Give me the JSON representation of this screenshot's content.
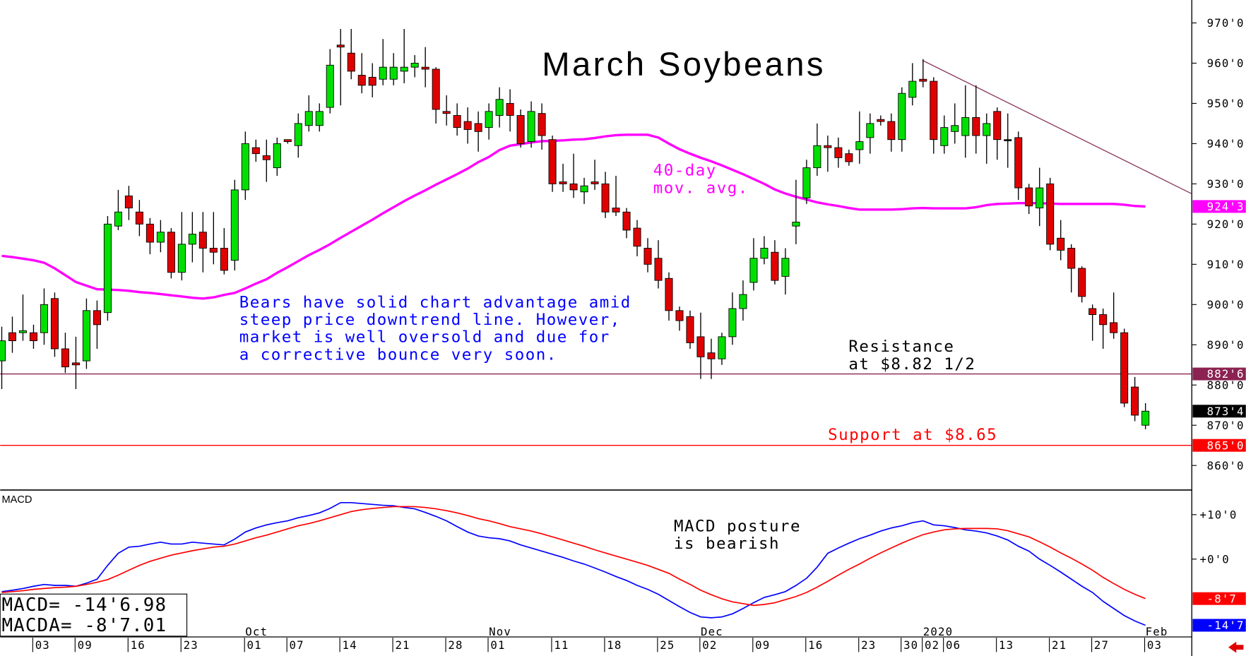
{
  "chart_data": {
    "type": "candlestick",
    "title": "March Soybeans",
    "categories": [
      null,
      null,
      null,
      "03",
      null,
      null,
      null,
      "09",
      null,
      null,
      null,
      null,
      "16",
      null,
      null,
      null,
      null,
      "23",
      null,
      null,
      null,
      null,
      null,
      "01",
      null,
      null,
      null,
      "07",
      null,
      null,
      null,
      null,
      "14",
      null,
      null,
      null,
      null,
      "21",
      null,
      null,
      null,
      null,
      "28",
      null,
      null,
      null,
      "01",
      null,
      null,
      null,
      null,
      null,
      "11",
      null,
      null,
      null,
      null,
      "18",
      null,
      null,
      null,
      null,
      "25",
      null,
      null,
      null,
      "02",
      null,
      null,
      null,
      null,
      "09",
      null,
      null,
      null,
      null,
      "16",
      null,
      null,
      null,
      null,
      "23",
      null,
      null,
      null,
      "30",
      null,
      "02",
      null,
      "06",
      null,
      null,
      null,
      null,
      "13",
      null,
      null,
      null,
      null,
      "21",
      null,
      null,
      null,
      "27",
      null,
      null,
      null,
      null,
      "03"
    ],
    "month_labels": [
      {
        "label": "Oct",
        "index": 23
      },
      {
        "label": "Nov",
        "index": 46
      },
      {
        "label": "Dec",
        "index": 66
      },
      {
        "label": "2020",
        "index": 87
      },
      {
        "label": "Feb",
        "index": 108
      }
    ],
    "up_color": "#00e000",
    "down_color": "#e00000",
    "open": [
      886,
      893,
      893,
      893,
      893,
      901.5,
      889,
      885.5,
      886,
      898.5,
      898,
      919.5,
      927,
      923,
      920,
      915.5,
      918,
      908,
      915,
      918,
      914,
      914,
      911,
      928.5,
      939,
      937,
      934,
      941,
      939.5,
      944.5,
      944.5,
      949,
      964.5,
      962.5,
      957,
      956.5,
      956,
      956,
      958,
      959,
      959,
      958.5,
      948,
      947,
      945.5,
      945,
      944,
      947,
      950,
      947,
      940.5,
      947.5,
      941,
      930.5,
      930,
      928,
      930.5,
      930,
      924,
      923,
      919,
      914,
      911.5,
      906.5,
      898.5,
      897,
      892,
      888,
      886.5,
      892,
      899,
      905.5,
      911.5,
      913,
      907,
      919.5,
      926.5,
      934,
      939.5,
      939,
      937.5,
      938.5,
      941.5,
      946,
      945.5,
      941,
      951.5,
      956,
      955.5,
      939.5,
      943,
      942,
      946.5,
      942,
      948,
      941,
      941.5,
      929,
      924,
      930,
      916.5,
      914,
      909,
      899,
      897.5,
      895.5,
      893,
      879.5,
      870
    ],
    "high": [
      894.5,
      897,
      902.5,
      895,
      904,
      903,
      893,
      892,
      901.5,
      901,
      922,
      928.5,
      929.5,
      926,
      921.5,
      921,
      919,
      923,
      923,
      923,
      923,
      919,
      931,
      943,
      941,
      941,
      941.5,
      941,
      947.5,
      952,
      950,
      963.5,
      968.5,
      968.5,
      962.5,
      960,
      966,
      962.5,
      968.5,
      962,
      964,
      959,
      952,
      950,
      949,
      948,
      950,
      954,
      953.5,
      948.5,
      950.5,
      950,
      942,
      935,
      937.5,
      931.5,
      936,
      933,
      932,
      924,
      921,
      916.5,
      916,
      908,
      899.5,
      898.5,
      898,
      891.5,
      893,
      903,
      906,
      916.5,
      917,
      916,
      914,
      931,
      936,
      945,
      942,
      941.5,
      938.5,
      948,
      947.5,
      947,
      947.5,
      954,
      960,
      961,
      956.5,
      947,
      950,
      954.5,
      954.5,
      947.5,
      949,
      947.5,
      943,
      930,
      934,
      931.5,
      921,
      915,
      909.5,
      900,
      899,
      903,
      894,
      882,
      875.5
    ],
    "low": [
      879,
      888,
      891,
      889,
      890,
      887,
      883,
      879,
      884,
      889,
      896,
      918.5,
      921,
      917,
      912.5,
      913,
      906.5,
      906,
      910.5,
      908,
      910,
      907.5,
      908.5,
      926,
      935.5,
      930.5,
      932,
      940,
      936.5,
      943,
      943,
      947.5,
      949.5,
      956,
      952.5,
      951.5,
      954.5,
      954.5,
      955,
      956.5,
      954,
      945,
      944.5,
      942,
      940,
      938,
      941,
      944,
      943,
      939,
      939,
      938.5,
      928,
      928,
      926.5,
      925,
      928.5,
      921.5,
      922,
      916.5,
      912,
      908,
      904,
      896,
      893.5,
      889,
      881.5,
      881.5,
      885,
      890,
      896,
      903.5,
      910,
      905,
      902.5,
      915,
      925,
      932,
      933,
      934,
      934.5,
      935,
      937.5,
      944.5,
      938,
      938,
      949.5,
      954,
      937.5,
      937.5,
      940,
      936.5,
      937.5,
      935,
      936,
      934,
      926,
      922.5,
      919.5,
      913.5,
      911,
      903,
      900.5,
      891,
      889,
      891.5,
      874.5,
      871,
      869
    ],
    "close": [
      891,
      891,
      893.5,
      891,
      900,
      889,
      884.5,
      885,
      898.5,
      895,
      920,
      923,
      924,
      920,
      915.5,
      918,
      908,
      915,
      917.5,
      914,
      913,
      908.5,
      928.5,
      940,
      937.5,
      936,
      940,
      940.5,
      945,
      948,
      948,
      959.5,
      964,
      958,
      954.5,
      954.5,
      959,
      959,
      959,
      960,
      958.5,
      948.5,
      947.5,
      944,
      943.5,
      943,
      948,
      951,
      947,
      940,
      948,
      942,
      930,
      930,
      928.5,
      929.5,
      930,
      923,
      923,
      918.5,
      914.5,
      910,
      906,
      898.5,
      896,
      890.5,
      887,
      886.5,
      892,
      899,
      902.5,
      911.5,
      914,
      906,
      911.5,
      920.5,
      934,
      939.5,
      939,
      936.5,
      935.5,
      940.5,
      945,
      945.5,
      941,
      952.5,
      955.5,
      955.5,
      941,
      944,
      944.5,
      946.5,
      942,
      945,
      941,
      941,
      929,
      924.5,
      929,
      915,
      913.5,
      909,
      902,
      897.5,
      895,
      893,
      875.5,
      872.5,
      873.5
    ],
    "moving_average": {
      "color": "#ff00ff",
      "values": [
        912.1,
        911.8,
        911.4,
        911.0,
        910.4,
        909.0,
        907.3,
        905.6,
        904.7,
        903.8,
        903.7,
        903.6,
        903.4,
        903.1,
        902.9,
        902.6,
        902.3,
        902.0,
        901.7,
        901.5,
        901.8,
        902.4,
        902.9,
        904.0,
        905.2,
        906.3,
        907.9,
        909.3,
        910.8,
        912.3,
        913.6,
        915.0,
        916.6,
        918.1,
        919.6,
        921.1,
        922.7,
        924.2,
        925.7,
        927.1,
        928.4,
        929.8,
        931.1,
        932.4,
        933.8,
        935.4,
        936.7,
        938.4,
        939.5,
        939.9,
        940.3,
        940.6,
        940.7,
        940.8,
        941.0,
        941.1,
        941.4,
        941.8,
        942.1,
        942.2,
        942.2,
        942.2,
        941.5,
        940.0,
        938.6,
        937.5,
        936.5,
        935.6,
        934.6,
        933.5,
        932.4,
        931.2,
        930.0,
        928.6,
        927.6,
        926.8,
        926.1,
        925.4,
        924.9,
        924.5,
        924.0,
        923.6,
        923.6,
        923.6,
        923.6,
        923.7,
        923.9,
        924.0,
        923.9,
        923.9,
        923.9,
        923.9,
        924.2,
        924.7,
        925.0,
        925.1,
        925.2,
        925.2,
        925.2,
        925.1,
        925.0,
        925.0,
        925.0,
        925.0,
        925.0,
        925.0,
        924.8,
        924.5,
        924.375
      ]
    },
    "ylim": [
      853.9,
      975.7
    ],
    "yticks": [
      {
        "value": 970,
        "label": "970'0"
      },
      {
        "value": 960,
        "label": "960'0"
      },
      {
        "value": 950,
        "label": "950'0"
      },
      {
        "value": 940,
        "label": "940'0"
      },
      {
        "value": 930,
        "label": "930'0"
      },
      {
        "value": 920,
        "label": "920'0"
      },
      {
        "value": 910,
        "label": "910'0"
      },
      {
        "value": 900,
        "label": "900'0"
      },
      {
        "value": 890,
        "label": "890'0"
      },
      {
        "value": 880,
        "label": "880'0"
      },
      {
        "value": 870,
        "label": "870'0"
      },
      {
        "value": 860,
        "label": "860'0"
      }
    ],
    "price_tags": [
      {
        "value": 924.375,
        "label": "924'3",
        "color": "#ff00ff",
        "line": false
      },
      {
        "value": 882.75,
        "label": "882'6",
        "color": "#8b2252",
        "line": true
      },
      {
        "value": 873.5,
        "label": "873'4",
        "color": "#000000",
        "line": false
      },
      {
        "value": 865,
        "label": "865'0",
        "color": "#ff0000",
        "line": true
      }
    ],
    "annotations": [
      {
        "lines": [
          "40-day",
          "mov. avg."
        ],
        "color": "#ff00ff"
      },
      {
        "lines": [
          "Bears have solid chart advantage amid",
          "steep price downtrend line. However,",
          "market is well oversold and due for",
          "a corrective bounce very soon."
        ],
        "color": "#0000ff"
      },
      {
        "lines": [
          "Resistance",
          "at $8.82 1/2"
        ],
        "color": "#000000"
      },
      {
        "lines": [
          "Support at $8.65"
        ],
        "color": "#ff0000"
      },
      {
        "lines": [
          "MACD posture",
          "is bearish"
        ],
        "color": "#000000"
      }
    ],
    "macd": {
      "title": "MACD",
      "ylim": [
        -17.14,
        15.18
      ],
      "yticks": [
        {
          "value": 10,
          "label": "+10'0"
        },
        {
          "value": 0,
          "label": "+0'0"
        }
      ],
      "series": [
        {
          "color": "#0000ff",
          "values": [
            -7.3,
            -7.0,
            -6.6,
            -6.1,
            -5.7,
            -5.9,
            -5.9,
            -6.1,
            -5.4,
            -4.5,
            -1.4,
            1.3,
            2.7,
            2.9,
            3.4,
            3.8,
            3.4,
            3.4,
            3.8,
            3.6,
            3.4,
            3.2,
            4.5,
            6.1,
            7.0,
            7.7,
            8.2,
            8.6,
            9.3,
            9.8,
            10.4,
            11.4,
            12.7,
            12.7,
            12.5,
            12.3,
            12.1,
            12.0,
            11.6,
            11.3,
            10.5,
            9.6,
            8.6,
            7.3,
            6.1,
            5.2,
            4.8,
            4.6,
            4.1,
            3.2,
            2.5,
            1.8,
            1.1,
            0.4,
            -0.4,
            -1.1,
            -2.0,
            -2.9,
            -3.9,
            -4.8,
            -5.9,
            -6.8,
            -7.9,
            -9.3,
            -10.7,
            -12.0,
            -13.0,
            -13.2,
            -13.0,
            -12.3,
            -11.1,
            -9.8,
            -8.6,
            -8.0,
            -7.3,
            -5.9,
            -4.3,
            -1.8,
            1.3,
            2.5,
            3.6,
            4.6,
            5.4,
            6.3,
            7.0,
            7.5,
            8.2,
            8.6,
            7.7,
            7.5,
            7.1,
            6.6,
            6.3,
            5.9,
            5.2,
            4.3,
            2.9,
            1.8,
            0,
            -1.4,
            -2.9,
            -4.5,
            -6.1,
            -7.5,
            -9.5,
            -11.1,
            -12.7,
            -13.9,
            -14.875
          ]
        },
        {
          "color": "#ff0000",
          "values": [
            -7.5,
            -7.3,
            -7.1,
            -6.8,
            -6.6,
            -6.4,
            -6.3,
            -6.1,
            -5.7,
            -5.2,
            -4.6,
            -3.6,
            -2.5,
            -1.4,
            -0.5,
            0.2,
            0.9,
            1.4,
            1.9,
            2.3,
            2.7,
            2.9,
            3.4,
            4.1,
            4.8,
            5.4,
            6.1,
            6.8,
            7.5,
            8.0,
            8.6,
            9.3,
            10.0,
            10.7,
            11.1,
            11.4,
            11.6,
            11.8,
            11.8,
            11.8,
            11.6,
            11.3,
            10.9,
            10.4,
            9.8,
            9.1,
            8.6,
            8.0,
            7.3,
            6.8,
            6.3,
            5.7,
            5.0,
            4.3,
            3.6,
            2.9,
            2.1,
            1.4,
            0.7,
            0,
            -0.7,
            -1.4,
            -2.3,
            -3.2,
            -4.5,
            -5.7,
            -7.0,
            -8.0,
            -8.9,
            -9.6,
            -10.0,
            -10.4,
            -10.2,
            -9.8,
            -9.1,
            -8.4,
            -7.5,
            -6.3,
            -5.0,
            -3.6,
            -2.3,
            -1.1,
            0.2,
            1.4,
            2.5,
            3.6,
            4.6,
            5.5,
            6.1,
            6.6,
            6.8,
            6.9,
            6.9,
            6.9,
            6.8,
            6.4,
            5.7,
            5.0,
            3.9,
            2.7,
            1.4,
            0.2,
            -1.1,
            -2.5,
            -4.1,
            -5.5,
            -6.8,
            -7.9,
            -8.875
          ]
        }
      ],
      "tags": [
        {
          "value": -8.875,
          "label": "-8'7",
          "color": "#ff0000"
        },
        {
          "value": -14.875,
          "label": "-14'7",
          "color": "#0000ff"
        }
      ],
      "readouts": [
        "MACD= -14'6.98",
        "MACDA= -8'7.01"
      ]
    }
  }
}
